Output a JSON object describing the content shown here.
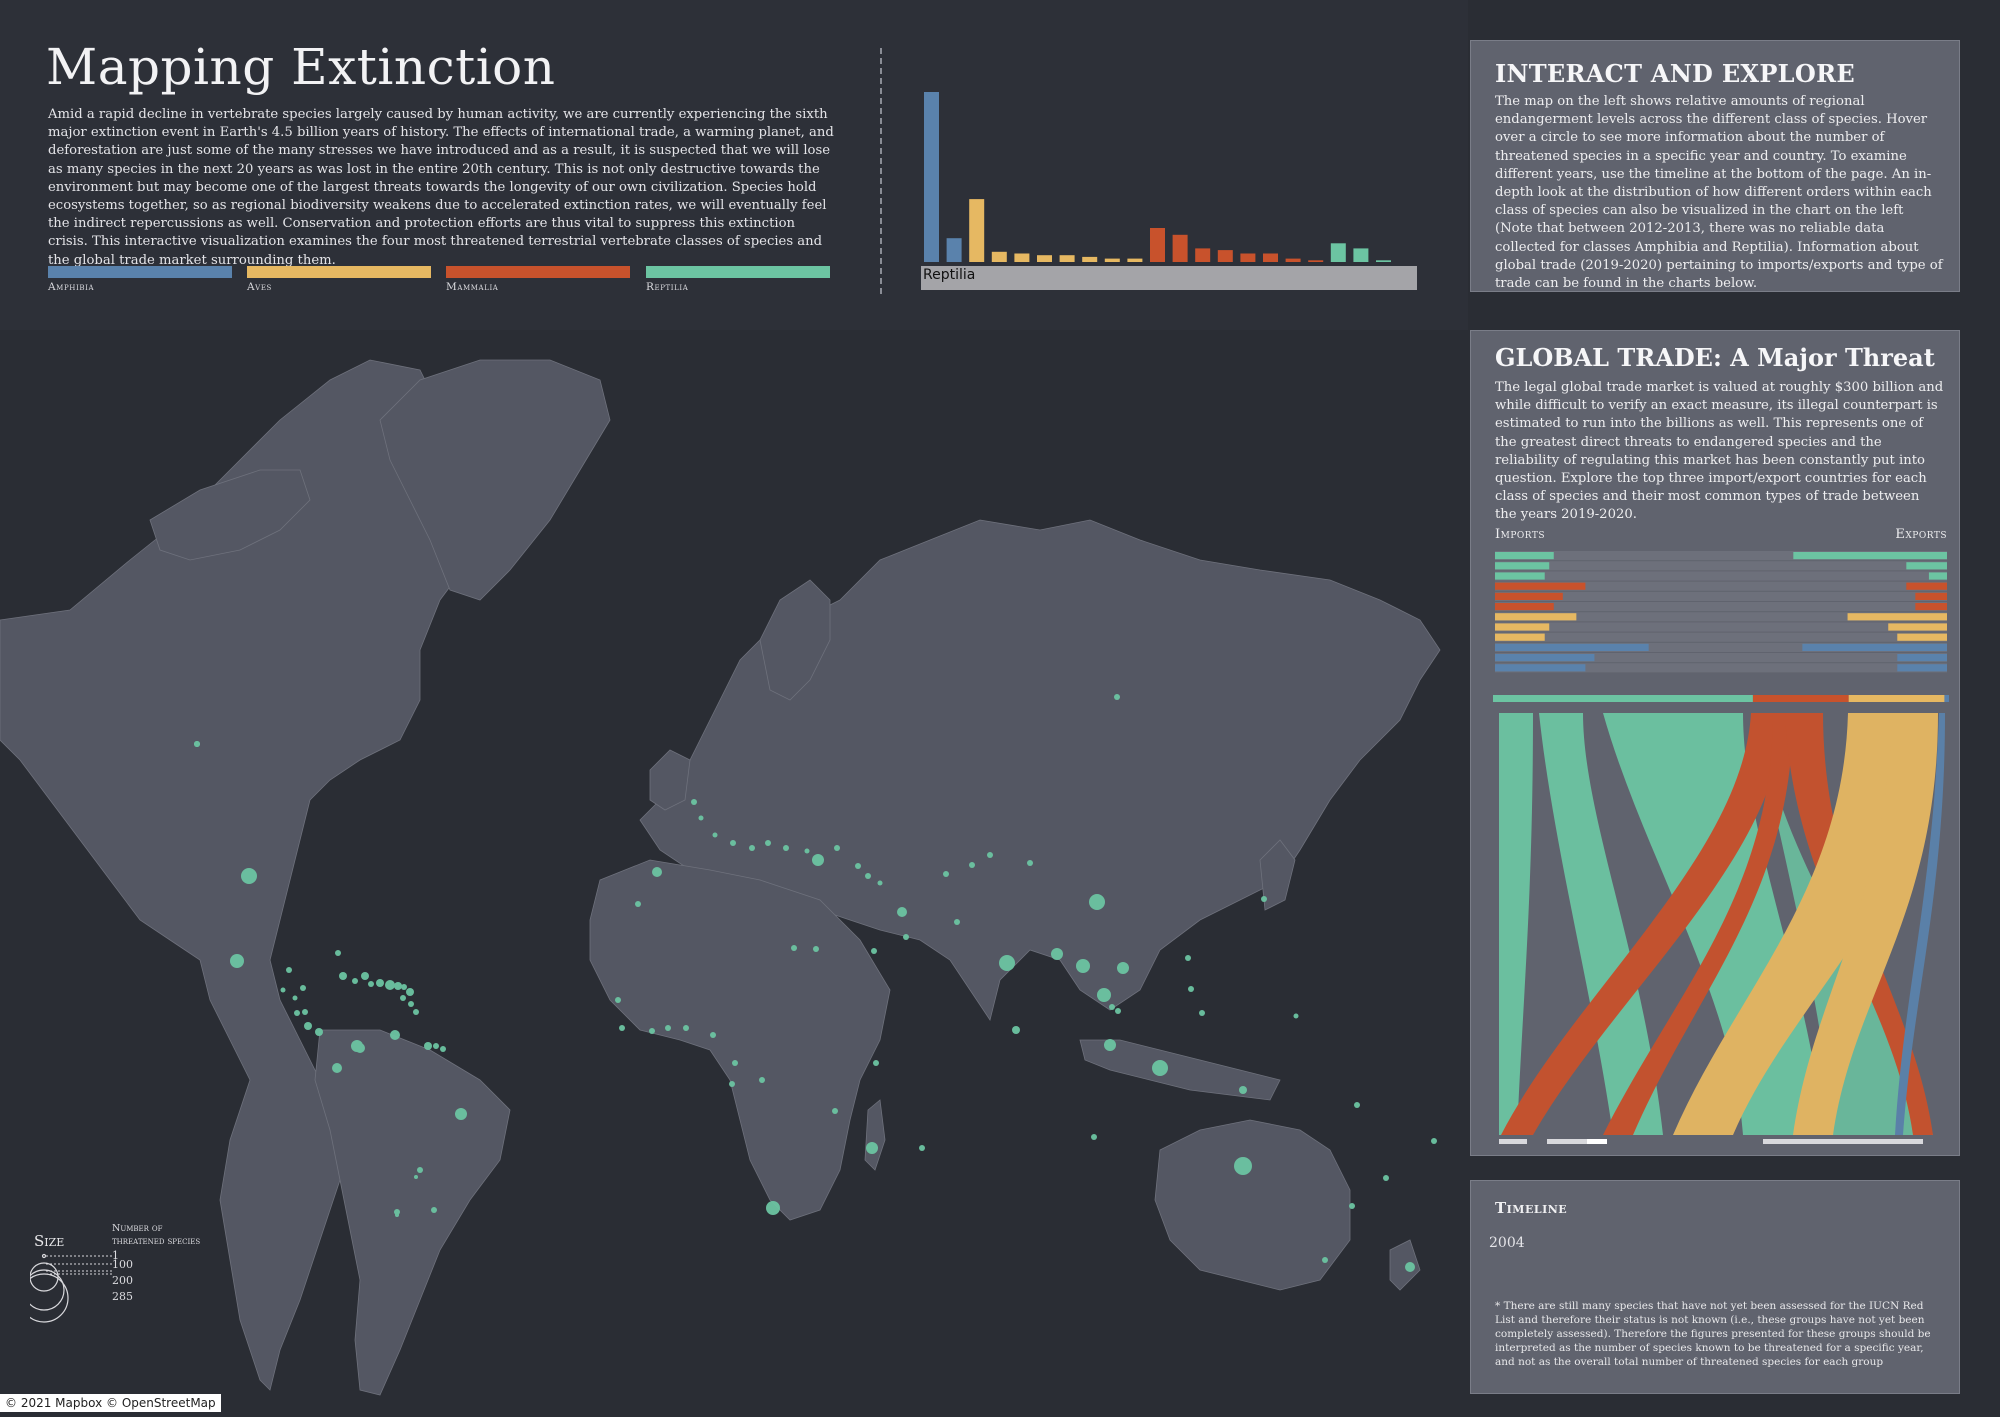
{
  "header": {
    "title": "Mapping Extinction",
    "intro": "Amid a rapid decline in vertebrate species largely caused by human activity, we are currently experiencing the sixth major extinction event in Earth's 4.5 billion years of history. The effects of international trade, a warming planet, and deforestation are just some of the many stresses we have introduced and as a result, it is suspected that we will lose as many species in the next 20 years as was lost in the entire 20th century. This is not only destructive towards the environment but may become one of the largest threats towards the longevity of our own civilization. Species hold ecosystems together, so as regional biodiversity weakens due to accelerated extinction rates, we will eventually feel the indirect repercussions as well. Conservation and protection efforts are thus vital to suppress this extinction crisis. This interactive visualization examines the four most threatened terrestrial vertebrate classes of species and the global trade market surrounding them."
  },
  "legend": [
    {
      "label": "Amphibia",
      "color": "#5a82ac"
    },
    {
      "label": "Aves",
      "color": "#e6b862"
    },
    {
      "label": "Mammalia",
      "color": "#c8522c"
    },
    {
      "label": "Reptilia",
      "color": "#6cc4a2"
    }
  ],
  "order_chart": {
    "selected_label": "Reptilia",
    "bars": [
      {
        "class": "Amphibia",
        "value": 100
      },
      {
        "class": "Amphibia",
        "value": 14
      },
      {
        "class": "Aves",
        "value": 37
      },
      {
        "class": "Aves",
        "value": 6
      },
      {
        "class": "Aves",
        "value": 5
      },
      {
        "class": "Aves",
        "value": 4
      },
      {
        "class": "Aves",
        "value": 4
      },
      {
        "class": "Aves",
        "value": 3
      },
      {
        "class": "Aves",
        "value": 2
      },
      {
        "class": "Aves",
        "value": 2
      },
      {
        "class": "Mammalia",
        "value": 20
      },
      {
        "class": "Mammalia",
        "value": 16
      },
      {
        "class": "Mammalia",
        "value": 8
      },
      {
        "class": "Mammalia",
        "value": 7
      },
      {
        "class": "Mammalia",
        "value": 5
      },
      {
        "class": "Mammalia",
        "value": 5
      },
      {
        "class": "Mammalia",
        "value": 2
      },
      {
        "class": "Mammalia",
        "value": 1
      },
      {
        "class": "Reptilia",
        "value": 11
      },
      {
        "class": "Reptilia",
        "value": 8
      },
      {
        "class": "Reptilia",
        "value": 1
      }
    ]
  },
  "map": {
    "attribution": "© 2021 Mapbox © OpenStreetMap",
    "point_color": "#6cc4a2"
  },
  "size_legend": {
    "title": "Size",
    "subtitle_1": "Number of",
    "subtitle_2": "threatened species",
    "values": [
      "1",
      "100",
      "200",
      "285"
    ]
  },
  "interact": {
    "title": "INTERACT AND EXPLORE",
    "body": "The map on the left shows relative amounts of regional endangerment levels across the different class of species. Hover over a circle to see more information about the number of threatened species in a specific year and country. To examine different years, use the timeline at the bottom of the page. An in-depth look at the distribution of how different orders within each class of species can also be visualized in the chart on the left (Note that between 2012-2013, there was no reliable data collected for classes Amphibia and Reptilia). Information about global trade (2019-2020) pertaining to imports/exports and type of trade can be found in the charts below."
  },
  "trade": {
    "title": "GLOBAL TRADE: A Major Threat",
    "body": "The legal global trade market is valued at roughly $300 billion and while difficult to verify an exact measure, its illegal counterpart is estimated to run into the billions as well. This represents one of the greatest direct threats to endangered species and the reliability of regulating this market has been constantly put into question. Explore the top three import/export countries for each class of species and their most common types of trade between the years 2019-2020.",
    "imports_label": "Imports",
    "exports_label": "Exports",
    "rows": [
      {
        "class": "Reptilia",
        "import": 0.13,
        "export": 0.34
      },
      {
        "class": "Reptilia",
        "import": 0.12,
        "export": 0.09
      },
      {
        "class": "Reptilia",
        "import": 0.11,
        "export": 0.04
      },
      {
        "class": "Mammalia",
        "import": 0.2,
        "export": 0.09
      },
      {
        "class": "Mammalia",
        "import": 0.15,
        "export": 0.07
      },
      {
        "class": "Mammalia",
        "import": 0.13,
        "export": 0.07
      },
      {
        "class": "Aves",
        "import": 0.18,
        "export": 0.22
      },
      {
        "class": "Aves",
        "import": 0.12,
        "export": 0.13
      },
      {
        "class": "Aves",
        "import": 0.11,
        "export": 0.11
      },
      {
        "class": "Amphibia",
        "import": 0.34,
        "export": 0.32
      },
      {
        "class": "Amphibia",
        "import": 0.22,
        "export": 0.11
      },
      {
        "class": "Amphibia",
        "import": 0.2,
        "export": 0.11
      }
    ],
    "sankey_top_shares": [
      {
        "class": "Reptilia",
        "share": 0.57
      },
      {
        "class": "Mammalia",
        "share": 0.21
      },
      {
        "class": "Aves",
        "share": 0.21
      },
      {
        "class": "Amphibia",
        "share": 0.01
      }
    ]
  },
  "timeline": {
    "title": "Timeline",
    "year": "2004",
    "note": "* There are still many species that have not yet been assessed for the IUCN Red List and therefore their status is not known (i.e., these groups have not yet been completely assessed). Therefore the figures presented for these groups should be interpreted as the number of species known to be threatened for a specific year, and not as the overall total number of threatened species for each group"
  }
}
